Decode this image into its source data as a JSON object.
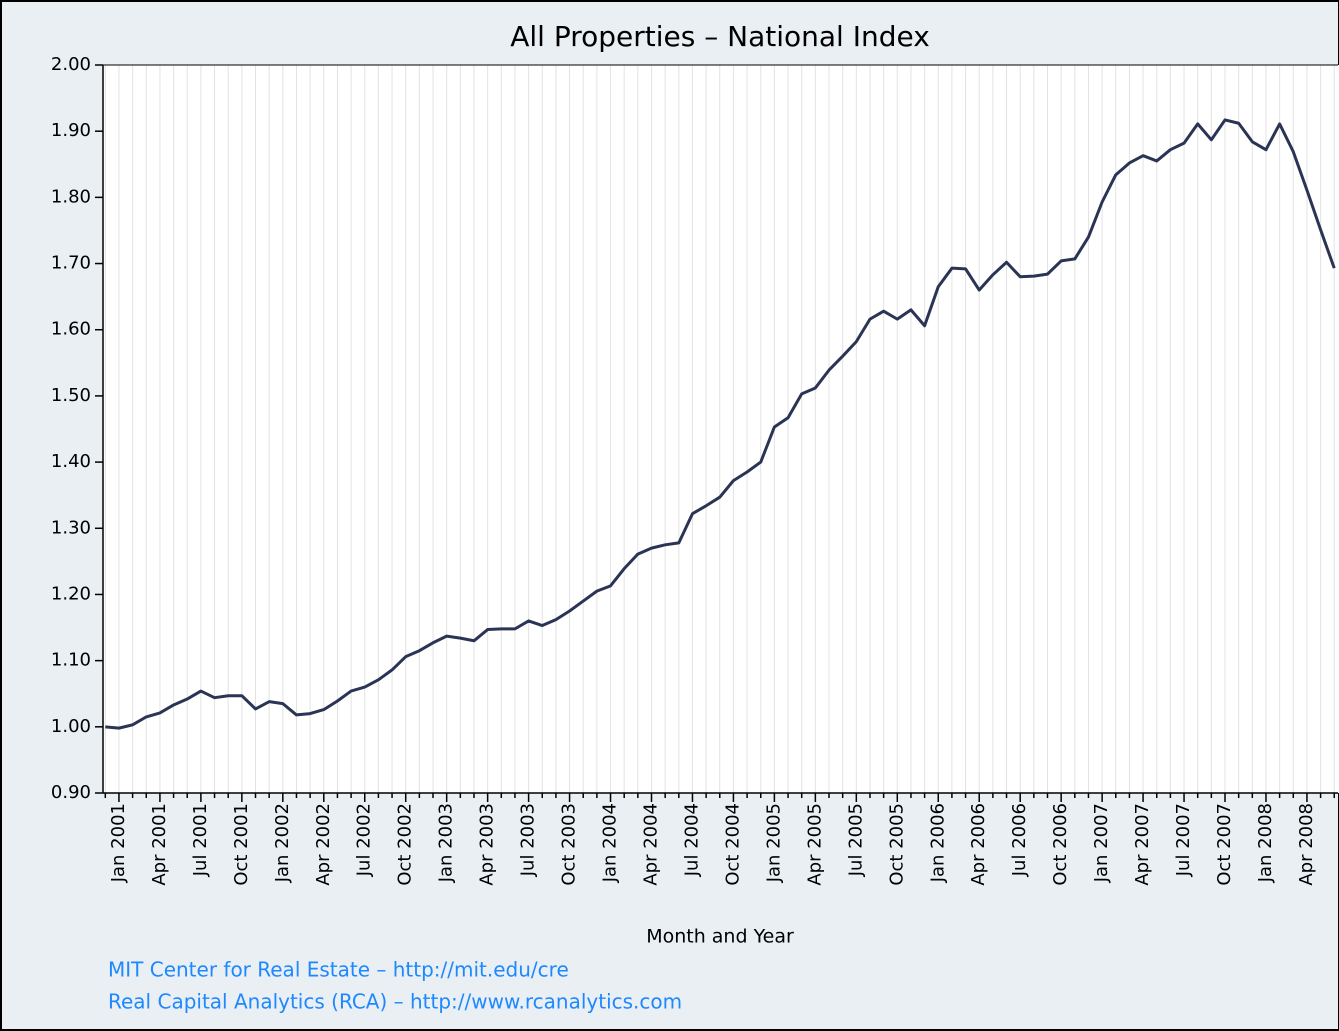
{
  "chart_data": {
    "type": "line",
    "title": "All Properties – National Index",
    "x_label": "Month and Year",
    "notes": [
      "MIT Center for Real Estate – http://mit.edu/cre",
      "Real Capital Analytics (RCA) – http://www.rcanalytics.com"
    ],
    "categories": [
      null,
      "Jan 2001",
      null,
      null,
      "Apr 2001",
      null,
      null,
      "Jul 2001",
      null,
      null,
      "Oct 2001",
      null,
      null,
      "Jan 2002",
      null,
      null,
      "Apr 2002",
      null,
      null,
      "Jul 2002",
      null,
      null,
      "Oct 2002",
      null,
      null,
      "Jan 2003",
      null,
      null,
      "Apr 2003",
      null,
      null,
      "Jul 2003",
      null,
      null,
      "Oct 2003",
      null,
      null,
      "Jan 2004",
      null,
      null,
      "Apr 2004",
      null,
      null,
      "Jul 2004",
      null,
      null,
      "Oct 2004",
      null,
      null,
      "Jan 2005",
      null,
      null,
      "Apr 2005",
      null,
      null,
      "Jul 2005",
      null,
      null,
      "Oct 2005",
      null,
      null,
      "Jan 2006",
      null,
      null,
      "Apr 2006",
      null,
      null,
      "Jul 2006",
      null,
      null,
      "Oct 2006",
      null,
      null,
      "Jan 2007",
      null,
      null,
      "Apr 2007",
      null,
      null,
      "Jul 2007",
      null,
      null,
      "Oct 2007",
      null,
      null,
      "Jan 2008",
      null,
      null,
      "Apr 2008",
      null,
      null
    ],
    "values": [
      1.0,
      0.998,
      1.003,
      1.015,
      1.021,
      1.033,
      1.042,
      1.054,
      1.044,
      1.047,
      1.047,
      1.027,
      1.038,
      1.035,
      1.018,
      1.02,
      1.026,
      1.039,
      1.054,
      1.06,
      1.071,
      1.086,
      1.106,
      1.115,
      1.127,
      1.137,
      1.134,
      1.13,
      1.147,
      1.148,
      1.148,
      1.16,
      1.153,
      1.162,
      1.175,
      1.19,
      1.205,
      1.213,
      1.239,
      1.261,
      1.27,
      1.275,
      1.278,
      1.322,
      1.334,
      1.347,
      1.372,
      1.385,
      1.4,
      1.453,
      1.467,
      1.503,
      1.512,
      1.539,
      1.56,
      1.582,
      1.616,
      1.628,
      1.616,
      1.63,
      1.606,
      1.665,
      1.693,
      1.692,
      1.66,
      1.683,
      1.702,
      1.68,
      1.681,
      1.684,
      1.704,
      1.707,
      1.74,
      1.793,
      1.834,
      1.852,
      1.863,
      1.855,
      1.872,
      1.882,
      1.911,
      1.887,
      1.917,
      1.912,
      1.884,
      1.872,
      1.911,
      1.869,
      1.811,
      1.751,
      1.693
    ],
    "color": "#2b3454",
    "ylim": [
      0.9,
      2.0
    ],
    "yticks": [
      {
        "value": 0.9,
        "label": "0.90"
      },
      {
        "value": 1.0,
        "label": "1.00"
      },
      {
        "value": 1.1,
        "label": "1.10"
      },
      {
        "value": 1.2,
        "label": "1.20"
      },
      {
        "value": 1.3,
        "label": "1.30"
      },
      {
        "value": 1.4,
        "label": "1.40"
      },
      {
        "value": 1.5,
        "label": "1.50"
      },
      {
        "value": 1.6,
        "label": "1.60"
      },
      {
        "value": 1.7,
        "label": "1.70"
      },
      {
        "value": 1.8,
        "label": "1.80"
      },
      {
        "value": 1.9,
        "label": "1.90"
      },
      {
        "value": 2.0,
        "label": "2.00"
      }
    ],
    "grid": true
  }
}
